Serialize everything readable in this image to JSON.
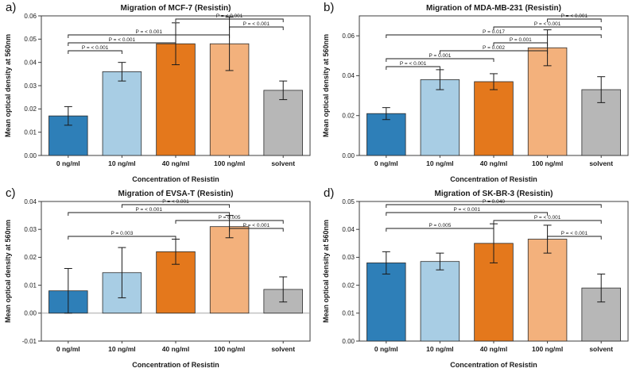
{
  "figure": {
    "background": "#ffffff",
    "bar_colors": [
      "#2e7fb8",
      "#a8cde4",
      "#e4781c",
      "#f3b17c",
      "#b7b7b7"
    ],
    "bar_edge_color": "#2b2b2b",
    "error_bar_color": "#1a1a1a",
    "frame_color": "#3c3c3c"
  },
  "chart_data": [
    {
      "panel": "a)",
      "type": "bar",
      "title": "Migration of MCF-7 (Resistin)",
      "xlabel": "Concentration of Resistin",
      "ylabel": "Mean optical density at 560nm",
      "categories": [
        "0 ng/ml",
        "10 ng/ml",
        "40 ng/ml",
        "100 ng/ml",
        "solvent"
      ],
      "values": [
        0.017,
        0.036,
        0.048,
        0.048,
        0.028
      ],
      "errors": [
        0.004,
        0.004,
        0.009,
        0.0115,
        0.004
      ],
      "ylim": [
        0,
        0.06
      ],
      "ytick_step": 0.01,
      "grid": false,
      "legend": "none",
      "brackets": [
        {
          "from": 0,
          "to": 1,
          "label": "P = < 0.001",
          "level": 4
        },
        {
          "from": 0,
          "to": 2,
          "label": "P = < 0.001",
          "level": 3
        },
        {
          "from": 0,
          "to": 3,
          "label": "P = < 0.001",
          "level": 2
        },
        {
          "from": 3,
          "to": 4,
          "label": "P = < 0.001",
          "level": 1
        },
        {
          "from": 2,
          "to": 4,
          "label": "P = < 0.001",
          "level": 0
        }
      ]
    },
    {
      "panel": "b)",
      "type": "bar",
      "title": "Migration of MDA-MB-231 (Resistin)",
      "xlabel": "Concentration of Resistin",
      "ylabel": "Mean optical density at 560nm",
      "categories": [
        "0 ng/ml",
        "10 ng/ml",
        "40 ng/ml",
        "100 ng/ml",
        "solvent"
      ],
      "values": [
        0.021,
        0.038,
        0.037,
        0.054,
        0.033
      ],
      "errors": [
        0.003,
        0.005,
        0.004,
        0.009,
        0.0065
      ],
      "ylim": [
        0,
        0.07
      ],
      "ytick_step": 0.02,
      "grid": false,
      "legend": "none",
      "brackets": [
        {
          "from": 0,
          "to": 1,
          "label": "P = < 0.001",
          "level": 6
        },
        {
          "from": 0,
          "to": 2,
          "label": "P = 0.001",
          "level": 5
        },
        {
          "from": 1,
          "to": 3,
          "label": "P = 0.002",
          "level": 4
        },
        {
          "from": 2,
          "to": 3,
          "label": "P = 0.001",
          "level": 3
        },
        {
          "from": 0,
          "to": 4,
          "label": "P = 0.017",
          "level": 2
        },
        {
          "from": 2,
          "to": 4,
          "label": "P = < 0.001",
          "level": 1
        },
        {
          "from": 3,
          "to": 4,
          "label": "P = < 0.001",
          "level": 0
        }
      ]
    },
    {
      "panel": "c)",
      "type": "bar",
      "title": "Migration of EVSA-T (Resistin)",
      "xlabel": "Concentration of Resistin",
      "ylabel": "Mean optical density at 560nm",
      "categories": [
        "0 ng/ml",
        "10 ng/ml",
        "40 ng/ml",
        "100 ng/ml",
        "solvent"
      ],
      "values": [
        0.008,
        0.0145,
        0.022,
        0.031,
        0.0085
      ],
      "errors": [
        0.008,
        0.009,
        0.0045,
        0.004,
        0.0045
      ],
      "ylim": [
        -0.01,
        0.04
      ],
      "ytick_step": 0.01,
      "grid": false,
      "legend": "none",
      "brackets": [
        {
          "from": 0,
          "to": 2,
          "label": "P = 0.003",
          "level": 4
        },
        {
          "from": 0,
          "to": 3,
          "label": "P = < 0.001",
          "level": 1
        },
        {
          "from": 1,
          "to": 3,
          "label": "P = < 0.001",
          "level": 0
        },
        {
          "from": 2,
          "to": 4,
          "label": "P = 0.005",
          "level": 2
        },
        {
          "from": 3,
          "to": 4,
          "label": "P = < 0.001",
          "level": 3
        }
      ]
    },
    {
      "panel": "d)",
      "type": "bar",
      "title": "Migration of SK-BR-3 (Resistin)",
      "xlabel": "Concentration of Resistin",
      "ylabel": "Mean optical density at 560nm",
      "categories": [
        "0 ng/ml",
        "10 ng/ml",
        "40 ng/ml",
        "100 ng/ml",
        "solvent"
      ],
      "values": [
        0.028,
        0.0285,
        0.035,
        0.0365,
        0.019
      ],
      "errors": [
        0.004,
        0.003,
        0.007,
        0.005,
        0.005
      ],
      "ylim": [
        0,
        0.05
      ],
      "ytick_step": 0.01,
      "grid": false,
      "legend": "none",
      "brackets": [
        {
          "from": 0,
          "to": 2,
          "label": "P = 0.005",
          "level": 3
        },
        {
          "from": 0,
          "to": 3,
          "label": "P = < 0.001",
          "level": 1
        },
        {
          "from": 0,
          "to": 4,
          "label": "P = 0.040",
          "level": 0
        },
        {
          "from": 2,
          "to": 4,
          "label": "P = < 0.001",
          "level": 2
        },
        {
          "from": 3,
          "to": 4,
          "label": "P = < 0.001",
          "level": 4
        }
      ]
    }
  ]
}
